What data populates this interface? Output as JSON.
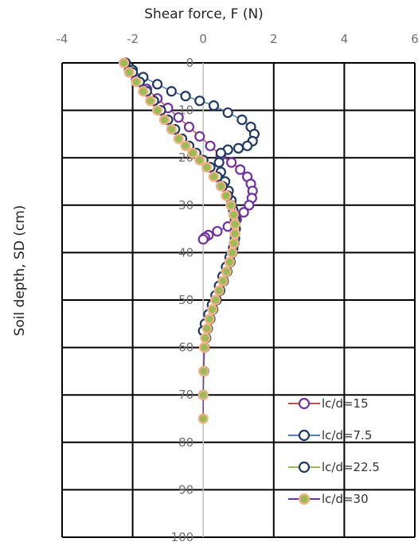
{
  "chart_data": {
    "type": "scatter",
    "xlabel": "Shear force, F (N)",
    "ylabel": "Soil depth, SD (cm)",
    "xlim": [
      -4,
      6
    ],
    "ylim": [
      0,
      100
    ],
    "y_axis_inverted": true,
    "x_axis_position": "top",
    "grid": true,
    "x_ticks": [
      "-4",
      "-2",
      "0",
      "2",
      "4",
      "6"
    ],
    "y_ticks": [
      "0",
      "10",
      "20",
      "30",
      "40",
      "50",
      "60",
      "70",
      "80",
      "90",
      "100"
    ],
    "legend_position": "bottom-right",
    "series": [
      {
        "name": "lc/d=15",
        "line_color": "#c0504d",
        "marker_stroke": "#7030a0",
        "marker_fill": "#ffffff",
        "x": [
          -2.2,
          -2.1,
          -1.9,
          -1.6,
          -1.3,
          -1.0,
          -0.7,
          -0.4,
          -0.1,
          0.2,
          0.5,
          0.8,
          1.05,
          1.25,
          1.35,
          1.4,
          1.38,
          1.3,
          1.15,
          0.95,
          0.7,
          0.4,
          0.15,
          0.05,
          0.0
        ],
        "y": [
          0,
          1.5,
          3.5,
          5.5,
          7.5,
          9.5,
          11.5,
          13.5,
          15.5,
          17.5,
          19.5,
          21,
          22.5,
          24,
          25.5,
          27,
          28.5,
          30,
          31.5,
          33,
          34.5,
          35.5,
          36.3,
          36.8,
          37.2
        ]
      },
      {
        "name": "lc/d=7.5",
        "line_color": "#4f81bd",
        "marker_stroke": "#1f3864",
        "marker_fill": "#ffffff",
        "x": [
          -2.2,
          -2.0,
          -1.7,
          -1.3,
          -0.9,
          -0.5,
          -0.1,
          0.3,
          0.7,
          1.1,
          1.35,
          1.45,
          1.4,
          1.25,
          1.0,
          0.7,
          0.5,
          0.45,
          0.5,
          0.62,
          0.72,
          0.8,
          0.85,
          0.9,
          0.92,
          0.9,
          0.85,
          0.75,
          0.65,
          0.55,
          0.45,
          0.35,
          0.25,
          0.15,
          0.05,
          0.0
        ],
        "y": [
          0,
          1.5,
          3,
          4.5,
          6,
          7,
          8,
          9,
          10.5,
          12,
          13.5,
          15,
          16.5,
          17.5,
          18,
          18.3,
          19,
          21,
          23,
          25,
          27,
          29,
          31,
          33,
          35,
          37,
          39,
          41,
          43,
          45,
          47,
          49,
          51,
          53,
          55,
          56.5
        ]
      },
      {
        "name": "lc/d=22.5",
        "line_color": "#9bbb59",
        "marker_stroke": "#1f3864",
        "marker_fill": "#ffffff",
        "x": [
          -2.2,
          -2.0,
          -1.8,
          -1.6,
          -1.4,
          -1.2,
          -1.0,
          -0.8,
          -0.6,
          -0.4,
          -0.2,
          0.0,
          0.2,
          0.4,
          0.55,
          0.7,
          0.8,
          0.87,
          0.9,
          0.9,
          0.88,
          0.83,
          0.77,
          0.68,
          0.58,
          0.48,
          0.38,
          0.28,
          0.2,
          0.13,
          0.08,
          0.04,
          0.02,
          0.0
        ],
        "y": [
          0,
          2,
          4,
          6,
          8,
          10,
          12,
          14,
          16,
          17.5,
          19,
          20.5,
          22,
          24,
          26,
          28,
          30,
          32,
          34,
          36,
          38,
          40,
          42,
          44,
          46,
          48,
          50,
          52,
          54,
          56,
          58,
          60,
          65,
          70
        ]
      },
      {
        "name": "lc/d=30",
        "line_color": "#7030a0",
        "marker_stroke": "#f4b183",
        "marker_fill": "#9bbb59",
        "x": [
          -2.25,
          -2.1,
          -1.9,
          -1.7,
          -1.5,
          -1.3,
          -1.1,
          -0.9,
          -0.7,
          -0.5,
          -0.3,
          -0.1,
          0.1,
          0.3,
          0.5,
          0.65,
          0.78,
          0.86,
          0.9,
          0.9,
          0.87,
          0.82,
          0.75,
          0.66,
          0.56,
          0.45,
          0.35,
          0.26,
          0.18,
          0.11,
          0.06,
          0.03,
          0.01,
          0.0,
          0.0
        ],
        "y": [
          0,
          2,
          4,
          6,
          8,
          10,
          12,
          14,
          16,
          17.5,
          19,
          20.5,
          22,
          24,
          26,
          28,
          30,
          32,
          34,
          36,
          38,
          40,
          42,
          44,
          46,
          48,
          50,
          52,
          54,
          56,
          58,
          60,
          65,
          70,
          75
        ]
      }
    ]
  }
}
